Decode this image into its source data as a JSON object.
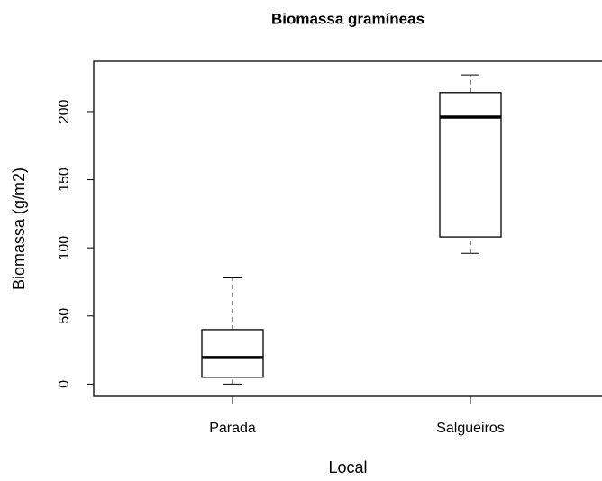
{
  "chart_data": {
    "type": "box",
    "title": "Biomassa gramíneas",
    "xlabel": "Local",
    "ylabel": "Biomassa (g/m2)",
    "categories": [
      "Parada",
      "Salgueiros"
    ],
    "min": [
      0,
      96
    ],
    "q1": [
      5,
      108
    ],
    "median": [
      19.5,
      196
    ],
    "q3": [
      40,
      214
    ],
    "max": [
      78,
      227
    ],
    "ylim": [
      -9,
      237
    ],
    "yticks": [
      0,
      50,
      100,
      150,
      200
    ]
  }
}
